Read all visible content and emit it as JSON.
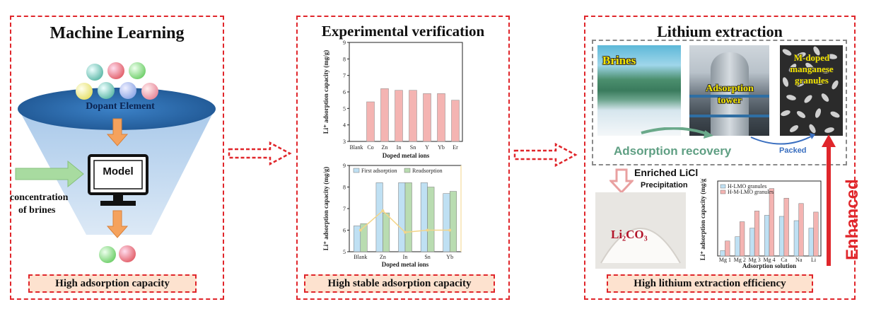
{
  "panel1": {
    "title": "Machine Learning",
    "dopant_label": "Dopant Element",
    "model_label": "Model",
    "input_label_1": "concentration",
    "input_label_2": "of brines",
    "footer": "High adsorption capacity"
  },
  "panel2": {
    "title": "Experimental verification",
    "chart1": {
      "type": "bar",
      "categories": [
        "Blank",
        "Co",
        "Zn",
        "In",
        "Sn",
        "Y",
        "Yb",
        "Er"
      ],
      "values": [
        3.0,
        5.4,
        6.2,
        6.1,
        6.1,
        5.9,
        5.9,
        5.5
      ],
      "xlabel": "Doped metal ions",
      "ylabel": "Li⁺ adsorption capacity (mg/g)",
      "yticks": [
        "3",
        "4",
        "5",
        "6",
        "7",
        "8",
        "9"
      ],
      "ylim": [
        3,
        9
      ],
      "colors": {
        "blank": "#bfe0f3",
        "doped": "#f4b4b2"
      }
    },
    "chart2": {
      "type": "bar",
      "categories": [
        "Blank",
        "Zn",
        "In",
        "Sn",
        "Yb"
      ],
      "series": [
        {
          "name": "First adsorption",
          "values": [
            6.2,
            8.2,
            8.2,
            8.2,
            7.7
          ]
        },
        {
          "name": "Readsorption",
          "values": [
            6.3,
            6.8,
            8.2,
            8.0,
            7.8
          ]
        }
      ],
      "line_values": [
        6.0,
        6.9,
        5.9,
        6.0,
        6.0
      ],
      "xlabel": "Doped metal ions",
      "ylabel": "Li⁺ adsorption capacity (mg/g)",
      "yticks": [
        "5",
        "6",
        "7",
        "8",
        "9"
      ],
      "ylim": [
        5,
        9
      ],
      "colors": {
        "first": "#bfe0f3",
        "readsorption": "#b9dcb1",
        "line": "#f3d58a"
      }
    },
    "footer": "High stable adsorption capacity"
  },
  "panel3": {
    "title": "Lithium extraction",
    "photo_brines": "Brines",
    "photo_tower_1": "Adsorption",
    "photo_tower_2": "tower",
    "photo_granules_1": "M-doped",
    "photo_granules_2": "manganese",
    "photo_granules_3": "granules",
    "cycle_label": "Adsorption recovery",
    "packed_label": "Packed",
    "enriched_label": "Enriched LiCl",
    "precip_label": "Precipitation",
    "product_label": "Li₂CO₃",
    "enhanced_label": "Enhanced",
    "chart3": {
      "type": "bar",
      "categories": [
        "Mg 1",
        "Mg 2",
        "Mg 3",
        "Mg 4",
        "Ca",
        "Na",
        "Li"
      ],
      "series": [
        {
          "name": "H-LMO granules",
          "values": [
            0.5,
            1.8,
            2.6,
            3.8,
            3.7,
            3.3,
            2.6
          ]
        },
        {
          "name": "H-M-LMO granules",
          "values": [
            1.4,
            3.2,
            4.2,
            6.3,
            5.4,
            4.9,
            4.1
          ]
        }
      ],
      "xlabel": "Adsorption solution",
      "ylabel": "Li⁺ adsorption capacity (mg/g)",
      "ylim": [
        0,
        7
      ],
      "colors": {
        "a": "#bfe0f3",
        "b": "#f4b4b2"
      }
    },
    "footer": "High lithium extraction efficiency"
  },
  "colors": {
    "accent": "#e0262b",
    "footer_bg": "#fde2cf",
    "funnel_top": "#2e6fb5",
    "funnel_body": "#bcd6ee",
    "arrow_orange": "#f5a25d",
    "arrow_green": "#a8dba0"
  }
}
